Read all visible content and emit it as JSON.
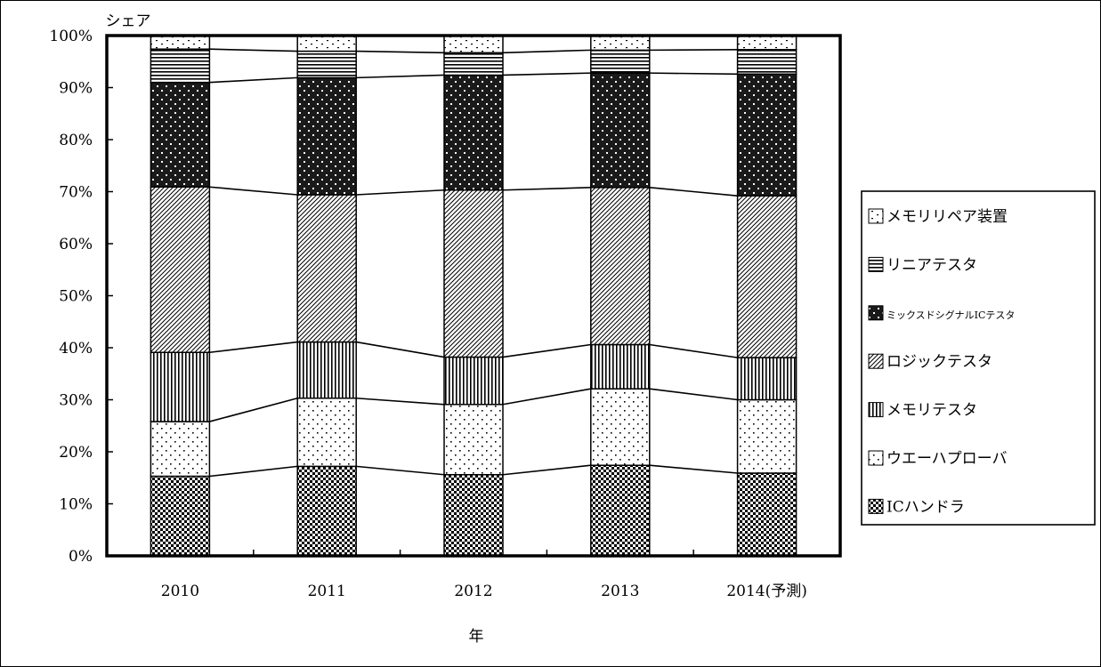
{
  "chart_data": {
    "type": "bar",
    "stacked": true,
    "normalized": true,
    "categories": [
      "2010",
      "2011",
      "2012",
      "2013",
      "2014(予測)"
    ],
    "ylabel": "シェア",
    "xlabel": "年",
    "ylim": [
      0,
      100
    ],
    "yticks": [
      "0%",
      "10%",
      "20%",
      "30%",
      "40%",
      "50%",
      "60%",
      "70%",
      "80%",
      "90%",
      "100%"
    ],
    "legend_position": "right",
    "series": [
      {
        "name": "ICハンドラ",
        "pattern": "checker",
        "values": [
          15.3,
          17.2,
          15.6,
          17.4,
          15.9
        ]
      },
      {
        "name": "ウエーハプローバ",
        "pattern": "dots",
        "values": [
          10.5,
          13.1,
          13.5,
          14.7,
          14.1
        ]
      },
      {
        "name": "メモリテスタ",
        "pattern": "vertical",
        "values": [
          13.3,
          10.8,
          9.1,
          8.5,
          8.1
        ]
      },
      {
        "name": "ロジックテスタ",
        "pattern": "diagonal",
        "values": [
          31.8,
          28.3,
          32.1,
          30.2,
          31.1
        ]
      },
      {
        "name": "ミックスドシグナルICテスタ",
        "pattern": "darkdots",
        "values": [
          20.1,
          22.5,
          22.1,
          22.0,
          23.4
        ]
      },
      {
        "name": "リニアテスタ",
        "pattern": "horizontal",
        "values": [
          6.4,
          5.1,
          4.3,
          4.4,
          4.7
        ]
      },
      {
        "name": "メモリリペア装置",
        "pattern": "sparse",
        "values": [
          2.6,
          3.0,
          3.3,
          2.8,
          2.7
        ]
      }
    ],
    "legend_order": [
      "メモリリペア装置",
      "リニアテスタ",
      "ミックスドシグナルICテスタ",
      "ロジックテスタ",
      "メモリテスタ",
      "ウエーハプローバ",
      "ICハンドラ"
    ]
  }
}
